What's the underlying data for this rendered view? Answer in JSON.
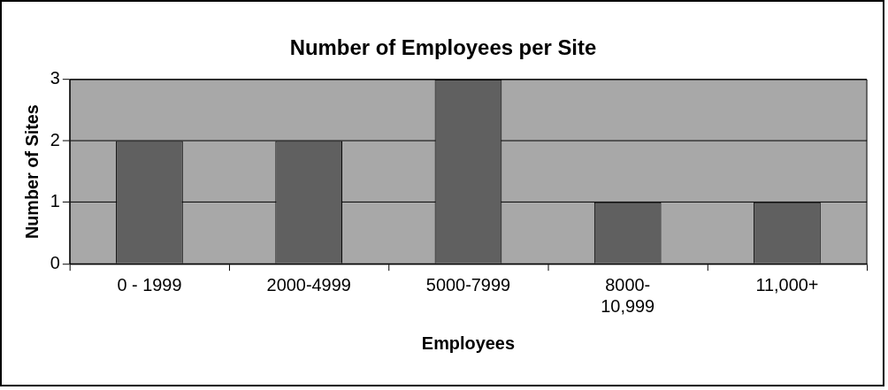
{
  "chart_data": {
    "type": "bar",
    "title": "Number of Employees per Site",
    "xlabel": "Employees",
    "ylabel": "Number of Sites",
    "categories": [
      "0 - 1999",
      "2000-4999",
      "5000-7999",
      "8000-10,999",
      "11,000+"
    ],
    "values": [
      2,
      2,
      3,
      1,
      1
    ],
    "color": "#606060",
    "ylim": [
      0,
      3
    ],
    "yticks": [
      0,
      1,
      2,
      3
    ],
    "grid": "y",
    "legend": false
  }
}
